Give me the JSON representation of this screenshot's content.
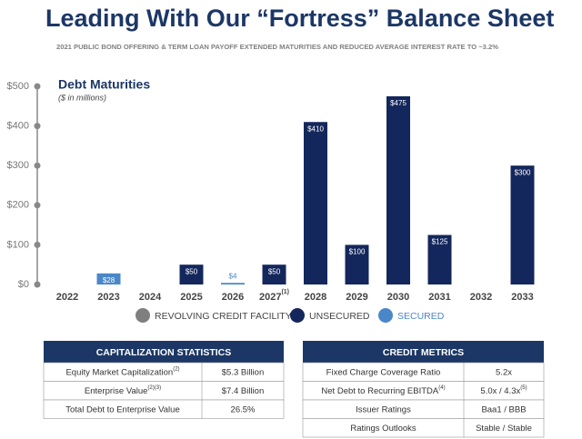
{
  "title": "Leading With Our “Fortress” Balance Sheet",
  "subtitle": "2021 PUBLIC BOND OFFERING & TERM LOAN PAYOFF EXTENDED MATURITIES AND REDUCED AVERAGE INTEREST RATE TO ~3.2%",
  "chart_data": {
    "type": "stacked_bar",
    "title": "Debt Maturities",
    "subtitle": "($ in millions)",
    "categories": [
      "2022",
      "2023",
      "2024",
      "2025",
      "2026",
      "2027",
      "2028",
      "2029",
      "2030",
      "2031",
      "2032",
      "2033"
    ],
    "category_notes": [
      null,
      null,
      null,
      null,
      null,
      "(1)",
      null,
      null,
      null,
      null,
      null,
      null
    ],
    "series": [
      {
        "name": "REVOLVING CREDIT FACILITY",
        "color": "#7f7f7f",
        "values": [
          null,
          null,
          null,
          null,
          null,
          null,
          null,
          null,
          null,
          null,
          null,
          null
        ]
      },
      {
        "name": "UNSECURED",
        "color": "#14275c",
        "values": [
          null,
          null,
          null,
          50,
          null,
          50,
          410,
          100,
          475,
          125,
          null,
          300
        ],
        "value_labels": [
          null,
          null,
          null,
          "$50",
          null,
          "$50",
          "$410",
          "$100",
          "$475",
          "$125",
          null,
          "$300"
        ]
      },
      {
        "name": "SECURED",
        "color": "#4a87c9",
        "values": [
          null,
          28,
          null,
          null,
          4,
          null,
          null,
          null,
          null,
          null,
          null,
          null
        ],
        "value_labels": [
          null,
          "$28",
          null,
          null,
          "$4",
          null,
          null,
          null,
          null,
          null,
          null,
          null
        ]
      }
    ],
    "ylim": [
      0,
      500
    ],
    "yticks": [
      {
        "value": 0,
        "label": "$0"
      },
      {
        "value": 100,
        "label": "$100"
      },
      {
        "value": 200,
        "label": "$200"
      },
      {
        "value": 300,
        "label": "$300"
      },
      {
        "value": 400,
        "label": "$400"
      },
      {
        "value": 500,
        "label": "$500"
      }
    ],
    "grid": false
  },
  "tables": [
    {
      "title": "CAPITALIZATION STATISTICS",
      "rows": [
        {
          "label": "Equity Market Capitalization",
          "note": "(2)",
          "value": "$5.3 Billion"
        },
        {
          "label": "Enterprise Value",
          "note": "(2)(3)",
          "value": "$7.4 Billion"
        },
        {
          "label": "Total Debt to Enterprise Value",
          "value": "26.5%"
        }
      ]
    },
    {
      "title": "CREDIT METRICS",
      "rows": [
        {
          "label": "Fixed Charge Coverage Ratio",
          "value": "5.2x"
        },
        {
          "label": "Net Debt to Recurring EBITDA",
          "note": "(4)",
          "value": "5.0x / 4.3x",
          "value_note": "(5)"
        },
        {
          "label": "Issuer Ratings",
          "value": "Baa1 / BBB"
        },
        {
          "label": "Ratings Outlooks",
          "value": "Stable / Stable"
        }
      ]
    }
  ]
}
